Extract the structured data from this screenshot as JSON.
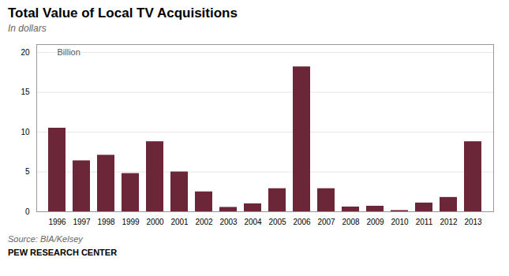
{
  "chart_data": {
    "type": "bar",
    "title": "Total Value of Local TV Acquisitions",
    "subtitle": "In dollars",
    "annotation": "Billion",
    "source": "Source: BIA/Kelsey",
    "footer": "PEW RESEARCH CENTER",
    "categories": [
      "1996",
      "1997",
      "1998",
      "1999",
      "2000",
      "2001",
      "2002",
      "2003",
      "2004",
      "2005",
      "2006",
      "2007",
      "2008",
      "2009",
      "2010",
      "2011",
      "2012",
      "2013"
    ],
    "values": [
      10.5,
      6.4,
      7.1,
      4.8,
      8.8,
      5.0,
      2.5,
      0.55,
      1.0,
      2.9,
      18.2,
      2.9,
      0.6,
      0.7,
      0.15,
      1.1,
      1.8,
      8.8
    ],
    "color": "#6B2737",
    "ylim": [
      0,
      21
    ],
    "yticks": [
      0,
      5,
      10,
      15,
      20
    ],
    "grid": true
  }
}
